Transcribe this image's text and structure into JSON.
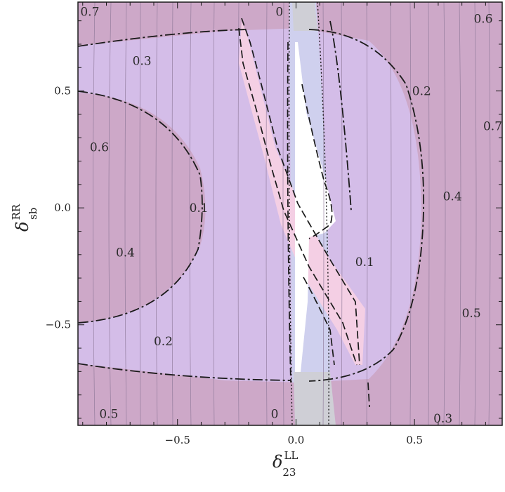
{
  "chart_data": {
    "type": "contour",
    "title": "",
    "xlabel": {
      "symbol": "δ",
      "superscript": "LL",
      "subscript": "23"
    },
    "ylabel": {
      "symbol": "δ",
      "superscript": "RR",
      "subscript": "sb"
    },
    "xlim": [
      -0.92,
      0.87
    ],
    "ylim": [
      -0.93,
      0.88
    ],
    "x_ticks": [
      {
        "value": -0.5,
        "label": "−0.5"
      },
      {
        "value": 0.0,
        "label": "0.0"
      },
      {
        "value": 0.5,
        "label": "0.5"
      }
    ],
    "y_ticks": [
      {
        "value": -0.5,
        "label": "−0.5"
      },
      {
        "value": 0.0,
        "label": "0.0"
      },
      {
        "value": 0.5,
        "label": "0.5"
      }
    ],
    "contour_labels": [
      {
        "text": "0.7",
        "x": -0.87,
        "y": 0.84
      },
      {
        "text": "0",
        "x": -0.07,
        "y": 0.84
      },
      {
        "text": "0.6",
        "x": 0.79,
        "y": 0.81
      },
      {
        "text": "0.3",
        "x": -0.65,
        "y": 0.63
      },
      {
        "text": "0.2",
        "x": 0.53,
        "y": 0.5
      },
      {
        "text": "0.7",
        "x": 0.83,
        "y": 0.35
      },
      {
        "text": "0.6",
        "x": -0.83,
        "y": 0.26
      },
      {
        "text": "0.1",
        "x": -0.41,
        "y": 0.0
      },
      {
        "text": "0.4",
        "x": 0.66,
        "y": 0.05
      },
      {
        "text": "0.4",
        "x": -0.72,
        "y": -0.19
      },
      {
        "text": "0.1",
        "x": 0.29,
        "y": -0.23
      },
      {
        "text": "0.5",
        "x": 0.74,
        "y": -0.45
      },
      {
        "text": "0.2",
        "x": -0.56,
        "y": -0.57
      },
      {
        "text": "0.5",
        "x": -0.79,
        "y": -0.88
      },
      {
        "text": "0",
        "x": -0.09,
        "y": -0.88
      },
      {
        "text": "0.3",
        "x": 0.62,
        "y": -0.9
      }
    ],
    "colors": {
      "background": "#cda8c8",
      "region_mid": "#d4bde8",
      "region_strip": "#cfd0ee",
      "region_pink": "#f4cfe4",
      "region_white": "#ffffff",
      "region_grey": "#cfcfd6",
      "contour_lines": "#8a7595"
    },
    "grid": false
  }
}
